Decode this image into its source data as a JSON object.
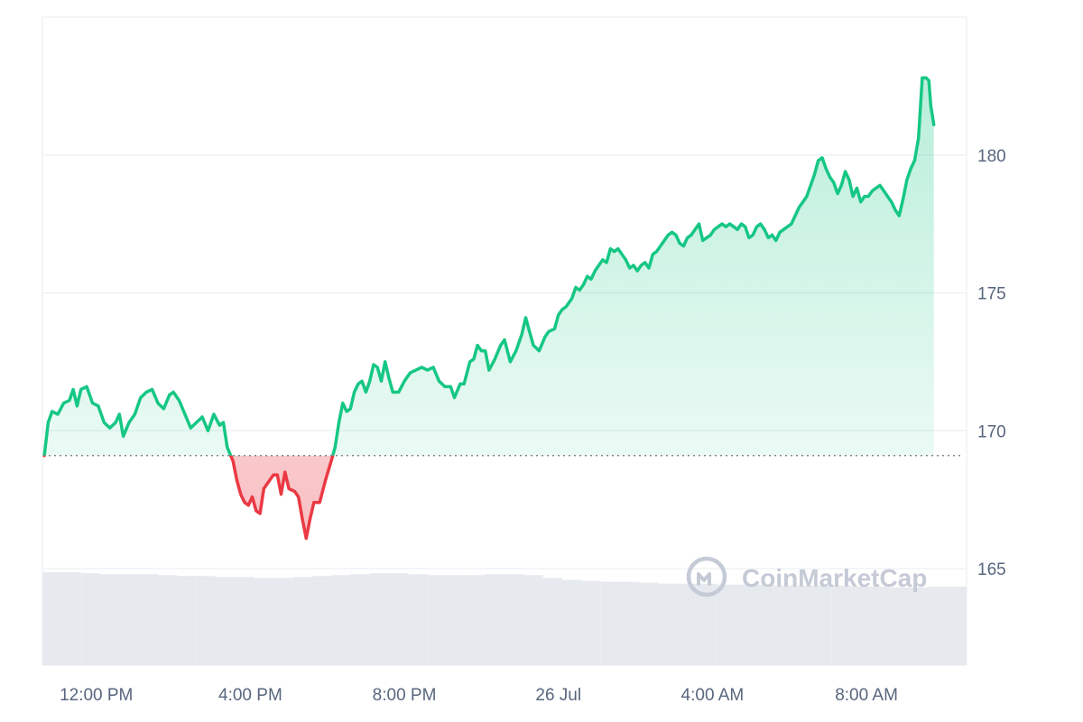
{
  "watermark": {
    "text": "CoinMarketCap",
    "icon": "coinmarketcap-logo-icon"
  },
  "colors": {
    "up": "#16c784",
    "down": "#ea3943",
    "grid": "#eff2f5",
    "volume": "#e6e9ee",
    "baseline": "#7e8694"
  },
  "chart_data": {
    "type": "area",
    "title": "",
    "xlabel": "",
    "ylabel": "",
    "x_tick_labels": [
      "12:00 PM",
      "4:00 PM",
      "8:00 PM",
      "26 Jul",
      "4:00 AM",
      "8:00 AM"
    ],
    "x_tick_hours": [
      12,
      16,
      20,
      24,
      28,
      32
    ],
    "x_range_hours": [
      10.6,
      34.6
    ],
    "y_tick_labels": [
      "165",
      "170",
      "175",
      "180"
    ],
    "y_ticks": [
      165,
      170,
      175,
      180
    ],
    "ylim": [
      161.5,
      185
    ],
    "baseline": 169.1,
    "grid": true,
    "axis_position": "right",
    "series": [
      {
        "points": [
          [
            10.65,
            169.1
          ],
          [
            10.75,
            170.3
          ],
          [
            10.85,
            170.7
          ],
          [
            11.0,
            170.6
          ],
          [
            11.15,
            171.0
          ],
          [
            11.3,
            171.1
          ],
          [
            11.4,
            171.5
          ],
          [
            11.5,
            170.9
          ],
          [
            11.6,
            171.5
          ],
          [
            11.75,
            171.6
          ],
          [
            11.9,
            171.0
          ],
          [
            12.05,
            170.9
          ],
          [
            12.2,
            170.3
          ],
          [
            12.35,
            170.1
          ],
          [
            12.5,
            170.3
          ],
          [
            12.6,
            170.6
          ],
          [
            12.7,
            169.8
          ],
          [
            12.85,
            170.3
          ],
          [
            13.0,
            170.6
          ],
          [
            13.15,
            171.2
          ],
          [
            13.3,
            171.4
          ],
          [
            13.45,
            171.5
          ],
          [
            13.6,
            171.0
          ],
          [
            13.75,
            170.8
          ],
          [
            13.9,
            171.3
          ],
          [
            14.0,
            171.4
          ],
          [
            14.15,
            171.1
          ],
          [
            14.3,
            170.6
          ],
          [
            14.45,
            170.1
          ],
          [
            14.6,
            170.3
          ],
          [
            14.75,
            170.5
          ],
          [
            14.9,
            170.0
          ],
          [
            15.05,
            170.6
          ],
          [
            15.2,
            170.2
          ],
          [
            15.3,
            170.3
          ],
          [
            15.4,
            169.4
          ],
          [
            15.55,
            168.9
          ],
          [
            15.65,
            168.2
          ],
          [
            15.75,
            167.7
          ],
          [
            15.85,
            167.4
          ],
          [
            15.95,
            167.3
          ],
          [
            16.05,
            167.6
          ],
          [
            16.15,
            167.1
          ],
          [
            16.25,
            167.0
          ],
          [
            16.35,
            167.9
          ],
          [
            16.5,
            168.2
          ],
          [
            16.6,
            168.4
          ],
          [
            16.7,
            168.4
          ],
          [
            16.8,
            167.7
          ],
          [
            16.9,
            168.5
          ],
          [
            17.0,
            167.9
          ],
          [
            17.15,
            167.8
          ],
          [
            17.25,
            167.6
          ],
          [
            17.35,
            166.8
          ],
          [
            17.45,
            166.1
          ],
          [
            17.55,
            166.8
          ],
          [
            17.65,
            167.4
          ],
          [
            17.8,
            167.4
          ],
          [
            17.95,
            168.2
          ],
          [
            18.1,
            168.9
          ],
          [
            18.2,
            169.4
          ],
          [
            18.3,
            170.3
          ],
          [
            18.4,
            171.0
          ],
          [
            18.5,
            170.7
          ],
          [
            18.6,
            170.8
          ],
          [
            18.7,
            171.4
          ],
          [
            18.8,
            171.7
          ],
          [
            18.9,
            171.8
          ],
          [
            19.0,
            171.4
          ],
          [
            19.1,
            171.8
          ],
          [
            19.2,
            172.4
          ],
          [
            19.3,
            172.3
          ],
          [
            19.4,
            171.8
          ],
          [
            19.5,
            172.5
          ],
          [
            19.6,
            171.9
          ],
          [
            19.7,
            171.4
          ],
          [
            19.85,
            171.4
          ],
          [
            20.0,
            171.8
          ],
          [
            20.15,
            172.1
          ],
          [
            20.3,
            172.2
          ],
          [
            20.45,
            172.3
          ],
          [
            20.6,
            172.2
          ],
          [
            20.75,
            172.3
          ],
          [
            20.9,
            171.8
          ],
          [
            21.05,
            171.6
          ],
          [
            21.2,
            171.6
          ],
          [
            21.3,
            171.2
          ],
          [
            21.45,
            171.7
          ],
          [
            21.55,
            171.7
          ],
          [
            21.7,
            172.5
          ],
          [
            21.8,
            172.6
          ],
          [
            21.9,
            173.1
          ],
          [
            22.0,
            172.9
          ],
          [
            22.1,
            172.9
          ],
          [
            22.2,
            172.2
          ],
          [
            22.35,
            172.6
          ],
          [
            22.5,
            173.1
          ],
          [
            22.6,
            173.3
          ],
          [
            22.75,
            172.5
          ],
          [
            22.9,
            172.9
          ],
          [
            23.05,
            173.5
          ],
          [
            23.15,
            174.1
          ],
          [
            23.25,
            173.6
          ],
          [
            23.35,
            173.1
          ],
          [
            23.5,
            172.9
          ],
          [
            23.65,
            173.4
          ],
          [
            23.75,
            173.6
          ],
          [
            23.9,
            173.7
          ],
          [
            24.0,
            174.2
          ],
          [
            24.1,
            174.4
          ],
          [
            24.2,
            174.5
          ],
          [
            24.35,
            174.8
          ],
          [
            24.45,
            175.2
          ],
          [
            24.55,
            175.1
          ],
          [
            24.65,
            175.3
          ],
          [
            24.75,
            175.6
          ],
          [
            24.85,
            175.5
          ],
          [
            24.95,
            175.8
          ],
          [
            25.05,
            176.0
          ],
          [
            25.15,
            176.2
          ],
          [
            25.25,
            176.1
          ],
          [
            25.35,
            176.6
          ],
          [
            25.45,
            176.5
          ],
          [
            25.55,
            176.6
          ],
          [
            25.65,
            176.4
          ],
          [
            25.75,
            176.2
          ],
          [
            25.85,
            175.9
          ],
          [
            25.95,
            176.0
          ],
          [
            26.05,
            175.8
          ],
          [
            26.15,
            176.0
          ],
          [
            26.25,
            176.1
          ],
          [
            26.35,
            175.9
          ],
          [
            26.45,
            176.4
          ],
          [
            26.55,
            176.5
          ],
          [
            26.65,
            176.7
          ],
          [
            26.75,
            176.9
          ],
          [
            26.85,
            177.1
          ],
          [
            26.95,
            177.2
          ],
          [
            27.05,
            177.1
          ],
          [
            27.15,
            176.8
          ],
          [
            27.25,
            176.7
          ],
          [
            27.35,
            177.0
          ],
          [
            27.45,
            177.1
          ],
          [
            27.55,
            177.3
          ],
          [
            27.65,
            177.5
          ],
          [
            27.75,
            176.9
          ],
          [
            27.85,
            177.0
          ],
          [
            27.95,
            177.1
          ],
          [
            28.05,
            177.3
          ],
          [
            28.15,
            177.4
          ],
          [
            28.25,
            177.5
          ],
          [
            28.35,
            177.4
          ],
          [
            28.45,
            177.5
          ],
          [
            28.55,
            177.4
          ],
          [
            28.65,
            177.3
          ],
          [
            28.75,
            177.5
          ],
          [
            28.85,
            177.4
          ],
          [
            28.95,
            177.0
          ],
          [
            29.05,
            177.1
          ],
          [
            29.15,
            177.4
          ],
          [
            29.25,
            177.5
          ],
          [
            29.35,
            177.3
          ],
          [
            29.45,
            177.0
          ],
          [
            29.55,
            177.1
          ],
          [
            29.65,
            176.9
          ],
          [
            29.75,
            177.2
          ],
          [
            29.85,
            177.3
          ],
          [
            29.95,
            177.4
          ],
          [
            30.05,
            177.5
          ],
          [
            30.15,
            177.8
          ],
          [
            30.25,
            178.1
          ],
          [
            30.35,
            178.3
          ],
          [
            30.45,
            178.5
          ],
          [
            30.55,
            178.9
          ],
          [
            30.65,
            179.3
          ],
          [
            30.75,
            179.8
          ],
          [
            30.85,
            179.9
          ],
          [
            30.95,
            179.5
          ],
          [
            31.05,
            179.2
          ],
          [
            31.15,
            179.0
          ],
          [
            31.25,
            178.6
          ],
          [
            31.35,
            178.9
          ],
          [
            31.45,
            179.4
          ],
          [
            31.55,
            179.1
          ],
          [
            31.65,
            178.5
          ],
          [
            31.75,
            178.8
          ],
          [
            31.85,
            178.3
          ],
          [
            31.95,
            178.5
          ],
          [
            32.05,
            178.5
          ],
          [
            32.15,
            178.7
          ],
          [
            32.25,
            178.8
          ],
          [
            32.35,
            178.9
          ],
          [
            32.45,
            178.7
          ],
          [
            32.55,
            178.5
          ],
          [
            32.65,
            178.3
          ],
          [
            32.75,
            178.0
          ],
          [
            32.85,
            177.8
          ],
          [
            32.95,
            178.4
          ],
          [
            33.05,
            179.1
          ],
          [
            33.15,
            179.5
          ],
          [
            33.25,
            179.8
          ],
          [
            33.35,
            180.6
          ],
          [
            33.45,
            182.8
          ],
          [
            33.55,
            182.8
          ],
          [
            33.62,
            182.7
          ],
          [
            33.67,
            181.8
          ],
          [
            33.75,
            181.1
          ]
        ]
      }
    ],
    "volume": {
      "x_hours": [
        10.6,
        11.1,
        11.6,
        12.1,
        12.6,
        13.1,
        13.6,
        14.1,
        14.6,
        15.1,
        15.6,
        16.1,
        16.6,
        17.1,
        17.6,
        18.1,
        18.6,
        19.1,
        19.6,
        20.1,
        20.6,
        21.1,
        21.6,
        22.1,
        22.6,
        23.1,
        23.6,
        24.1,
        24.6,
        25.1,
        25.6,
        26.1,
        26.6,
        27.1,
        27.6,
        28.1,
        28.6,
        29.1,
        29.6,
        30.1,
        30.6,
        31.1,
        31.6,
        32.1,
        32.6,
        33.1,
        33.6,
        34.1
      ],
      "values": [
        0.98,
        0.98,
        0.97,
        0.96,
        0.96,
        0.96,
        0.95,
        0.94,
        0.94,
        0.93,
        0.93,
        0.92,
        0.92,
        0.93,
        0.94,
        0.95,
        0.96,
        0.97,
        0.97,
        0.96,
        0.95,
        0.95,
        0.95,
        0.96,
        0.96,
        0.95,
        0.92,
        0.9,
        0.89,
        0.88,
        0.88,
        0.87,
        0.86,
        0.86,
        0.86,
        0.85,
        0.85,
        0.85,
        0.84,
        0.84,
        0.84,
        0.84,
        0.83,
        0.83,
        0.82,
        0.82,
        0.83,
        0.83
      ]
    }
  }
}
